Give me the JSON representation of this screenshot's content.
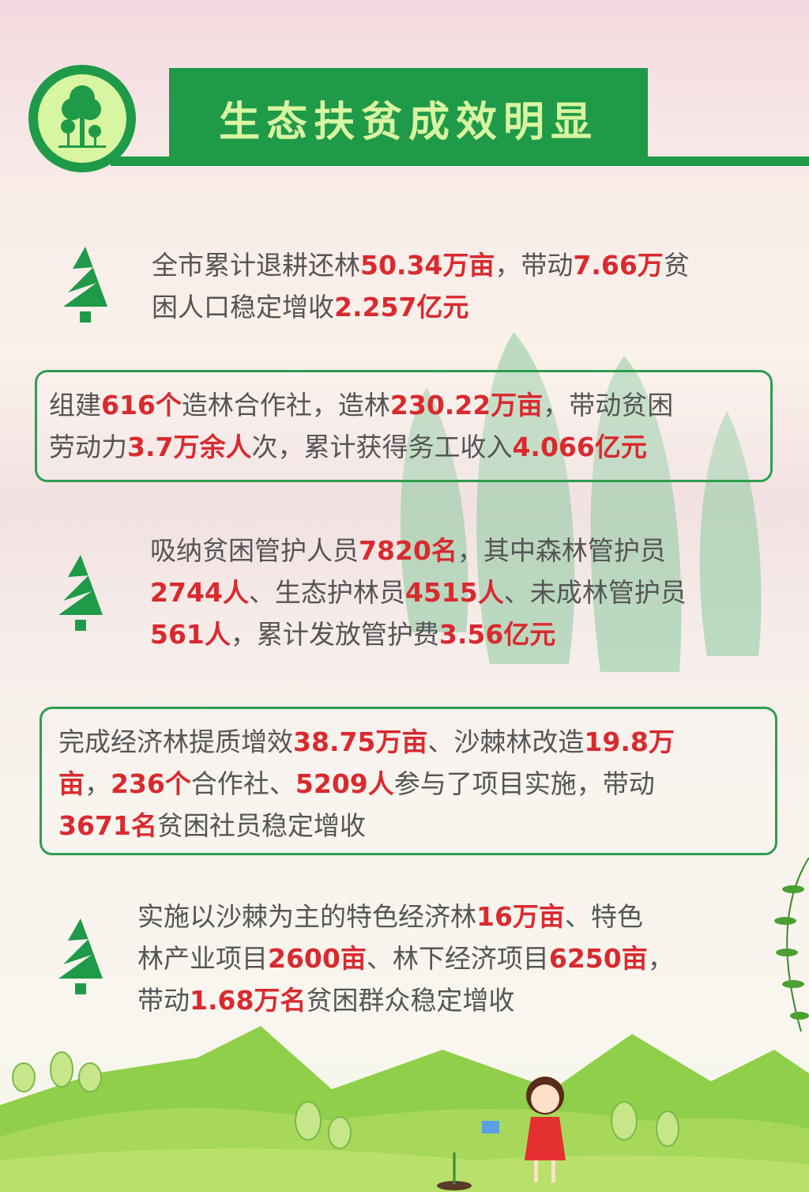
{
  "header": {
    "title": "生态扶贫成效明显",
    "icon": "tree-icon"
  },
  "colors": {
    "green": "#1f9a48",
    "light_green": "#d8f5a2",
    "highlight": "#d92a2f",
    "text": "#555555"
  },
  "sections": [
    {
      "lines": [
        [
          {
            "t": "全市累计退耕还林"
          },
          {
            "t": "50.34万亩",
            "hl": true
          },
          {
            "t": "，带动"
          },
          {
            "t": "7.66万",
            "hl": true
          },
          {
            "t": "贫"
          }
        ],
        [
          {
            "t": "困人口稳定增收"
          },
          {
            "t": "2.257亿元",
            "hl": true
          }
        ]
      ]
    },
    {
      "lines": [
        [
          {
            "t": "组建"
          },
          {
            "t": "616个",
            "hl": true
          },
          {
            "t": "造林合作社，造林"
          },
          {
            "t": "230.22万亩",
            "hl": true
          },
          {
            "t": "，带动贫困"
          }
        ],
        [
          {
            "t": "劳动力"
          },
          {
            "t": "3.7万余人",
            "hl": true
          },
          {
            "t": "次，累计获得务工收入"
          },
          {
            "t": "4.066亿元",
            "hl": true
          }
        ]
      ]
    },
    {
      "lines": [
        [
          {
            "t": "吸纳贫困管护人员"
          },
          {
            "t": "7820名",
            "hl": true
          },
          {
            "t": "，其中森林管护员"
          }
        ],
        [
          {
            "t": "2744人",
            "hl": true
          },
          {
            "t": "、生态护林员"
          },
          {
            "t": "4515人",
            "hl": true
          },
          {
            "t": "、未成林管护员"
          }
        ],
        [
          {
            "t": "561人",
            "hl": true
          },
          {
            "t": "，累计发放管护费"
          },
          {
            "t": "3.56亿元",
            "hl": true
          }
        ]
      ]
    },
    {
      "lines": [
        [
          {
            "t": "完成经济林提质增效"
          },
          {
            "t": "38.75万亩",
            "hl": true
          },
          {
            "t": "、沙棘林改造"
          },
          {
            "t": "19.8万",
            "hl": true
          }
        ],
        [
          {
            "t": "亩",
            "hl": true
          },
          {
            "t": "，"
          },
          {
            "t": "236个",
            "hl": true
          },
          {
            "t": "合作社、"
          },
          {
            "t": "5209人",
            "hl": true
          },
          {
            "t": "参与了项目实施，带动"
          }
        ],
        [
          {
            "t": "3671名",
            "hl": true
          },
          {
            "t": "贫困社员稳定增收"
          }
        ]
      ]
    },
    {
      "lines": [
        [
          {
            "t": "实施以沙棘为主的特色经济林"
          },
          {
            "t": "16万亩",
            "hl": true
          },
          {
            "t": "、特色"
          }
        ],
        [
          {
            "t": "林产业项目"
          },
          {
            "t": "2600亩",
            "hl": true
          },
          {
            "t": "、林下经济项目"
          },
          {
            "t": "6250亩",
            "hl": true
          },
          {
            "t": "，"
          }
        ],
        [
          {
            "t": "带动"
          },
          {
            "t": "1.68万名",
            "hl": true
          },
          {
            "t": "贫困群众稳定增收"
          }
        ]
      ]
    }
  ]
}
